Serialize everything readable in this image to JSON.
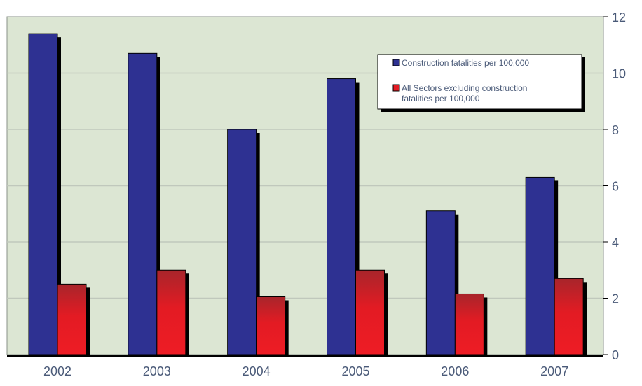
{
  "chart_data": {
    "type": "bar",
    "title": "",
    "xlabel": "",
    "ylabel": "",
    "categories": [
      "2002",
      "2003",
      "2004",
      "2005",
      "2006",
      "2007"
    ],
    "series": [
      {
        "name": "Construction fatalities per 100,000",
        "values": [
          11.4,
          10.7,
          8.0,
          9.8,
          5.1,
          6.3
        ],
        "color": "#2E3192"
      },
      {
        "name": "All Sectors excluding construction fatalities per 100,000",
        "values": [
          2.5,
          3.0,
          2.05,
          3.0,
          2.15,
          2.7
        ],
        "color": "#E31B23"
      }
    ],
    "ylim": [
      0,
      12
    ],
    "yticks": [
      "0",
      "2",
      "4",
      "6",
      "8",
      "10",
      "12"
    ],
    "y_axis_side": "right",
    "grid": true,
    "legend_position": "top-right",
    "plot_background": "#DCE6D3",
    "gridline_color": "#C0C8BC",
    "axis_text_color": "#4A5A78"
  }
}
